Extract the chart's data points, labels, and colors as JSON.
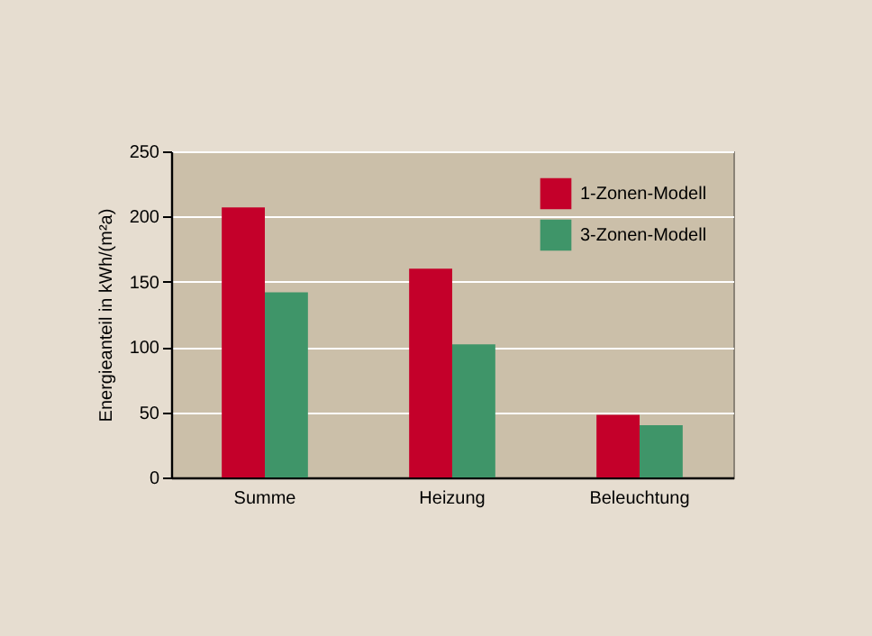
{
  "chart_data": {
    "type": "bar",
    "ylabel": "Energieanteil in kWh/(m²a)",
    "categories": [
      "Summe",
      "Heizung",
      "Beleuchtung"
    ],
    "series": [
      {
        "name": "1-Zonen-Modell",
        "color": "#c4002a",
        "values": [
          207,
          160,
          48
        ]
      },
      {
        "name": "3-Zonen-Modell",
        "color": "#3f9569",
        "values": [
          142,
          102,
          40
        ]
      }
    ],
    "ylim": [
      0,
      250
    ],
    "yticks": [
      0,
      50,
      100,
      150,
      200,
      250
    ],
    "grid": "y",
    "legend": "top right"
  }
}
